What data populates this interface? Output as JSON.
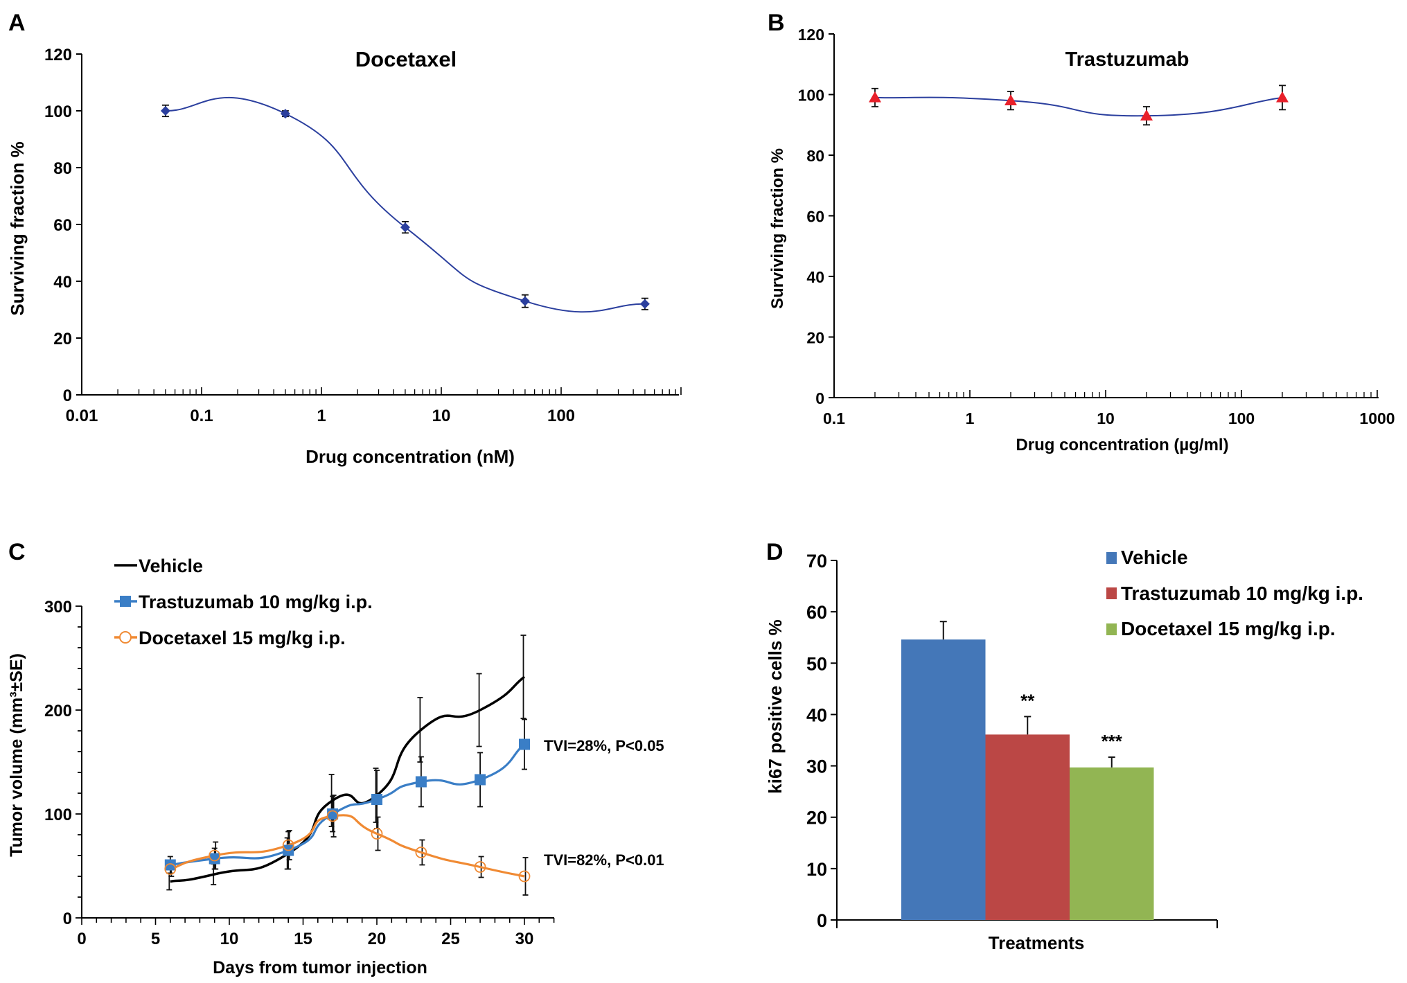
{
  "chart_data": [
    {
      "panel": "A",
      "type": "line",
      "title": "Docetaxel",
      "xlabel": "Drug concentration (nM)",
      "ylabel": "Surviving fraction %",
      "xscale": "log",
      "xlim": [
        0.01,
        1000
      ],
      "ylim": [
        0,
        120
      ],
      "xticks": [
        "0.01",
        "0.1",
        "1",
        "10",
        "100"
      ],
      "yticks": [
        "0",
        "20",
        "40",
        "60",
        "80",
        "100",
        "120"
      ],
      "grid": false,
      "series": [
        {
          "name": "Docetaxel",
          "color": "#2b3f9e",
          "marker": "diamond",
          "x": [
            0.05,
            0.5,
            5,
            50,
            500
          ],
          "y": [
            100,
            99,
            59,
            33,
            32
          ],
          "err": [
            2,
            1,
            2,
            2.2,
            2
          ]
        }
      ]
    },
    {
      "panel": "B",
      "type": "line",
      "title": "Trastuzumab",
      "xlabel": "Drug concentration (µg/ml)",
      "ylabel": "Surviving fraction %",
      "xscale": "log",
      "xlim": [
        0.1,
        1000
      ],
      "ylim": [
        0,
        120
      ],
      "xticks": [
        "0.1",
        "1",
        "10",
        "100",
        "1000"
      ],
      "yticks": [
        "0",
        "20",
        "40",
        "60",
        "80",
        "100",
        "120"
      ],
      "grid": false,
      "series": [
        {
          "name": "Trastuzumab",
          "color": "#2b3f9e",
          "marker_color": "#e8202a",
          "marker": "triangle",
          "x": [
            0.2,
            2,
            20,
            200
          ],
          "y": [
            99,
            98,
            93,
            99
          ],
          "err": [
            3,
            3,
            3,
            4
          ]
        }
      ]
    },
    {
      "panel": "C",
      "type": "line",
      "title": "",
      "xlabel": "Days from tumor injection",
      "ylabel": "Tumor volume (mm³±SE)",
      "xlim": [
        0,
        32
      ],
      "ylim": [
        0,
        300
      ],
      "xticks": [
        "0",
        "5",
        "10",
        "15",
        "20",
        "25",
        "30"
      ],
      "yticks": [
        "0",
        "100",
        "200",
        "300"
      ],
      "grid": false,
      "legend": "top-left",
      "x": [
        6,
        9,
        14,
        17,
        20,
        23,
        27,
        30
      ],
      "series": [
        {
          "name": "Vehicle",
          "color": "#000000",
          "marker": "none",
          "values": [
            35,
            42,
            62,
            113,
            118,
            181,
            200,
            232
          ],
          "err": [
            8,
            10,
            15,
            25,
            26,
            31,
            35,
            40
          ]
        },
        {
          "name": "Trastuzumab 10 mg/kg i.p.",
          "color": "#3a7ec6",
          "marker": "square",
          "values": [
            51,
            57,
            65,
            100,
            114,
            131,
            133,
            167
          ],
          "err": [
            8,
            10,
            18,
            17,
            28,
            24,
            26,
            24
          ]
        },
        {
          "name": "Docetaxel 15 mg/kg i.p.",
          "color": "#f08a33",
          "marker": "open-circle",
          "values": [
            47,
            60,
            70,
            98,
            81,
            63,
            49,
            40
          ],
          "err": [
            7,
            13,
            14,
            20,
            16,
            12,
            10,
            18
          ]
        }
      ],
      "annotations": [
        {
          "text": "TVI=28%, P<0.05",
          "x": 31,
          "y": 167
        },
        {
          "text": "TVI=82%, P<0.01",
          "x": 31,
          "y": 55
        }
      ]
    },
    {
      "panel": "D",
      "type": "bar",
      "title": "",
      "xlabel": "Treatments",
      "ylabel": "ki67 positive cells %",
      "ylim": [
        0,
        70
      ],
      "yticks": [
        "0",
        "10",
        "20",
        "30",
        "40",
        "50",
        "60",
        "70"
      ],
      "grid": false,
      "legend": "top-right",
      "categories": [
        "Vehicle",
        "Trastuzumab 10 mg/kg i.p.",
        "Docetaxel 15 mg/kg i.p."
      ],
      "values": [
        54.6,
        36.1,
        29.7
      ],
      "err": [
        3.5,
        3.5,
        2.0
      ],
      "colors": [
        "#4477b8",
        "#bb4745",
        "#92b553"
      ],
      "significance": [
        "",
        "**",
        "***"
      ]
    }
  ],
  "panel_labels": [
    "A",
    "B",
    "C",
    "D"
  ]
}
